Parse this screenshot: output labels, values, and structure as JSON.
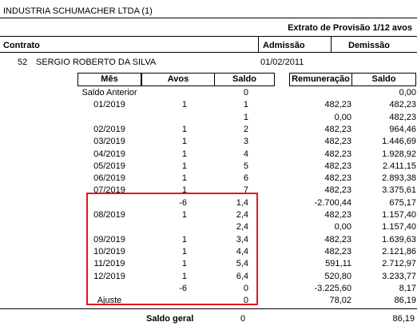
{
  "header": {
    "company": "INDUSTRIA SCHUMACHER LTDA (1)",
    "doc_title": "Extrato de Provisão 1/12 avos",
    "col_contrato": "Contrato",
    "col_admissao": "Admissão",
    "col_demissao": "Demissão"
  },
  "employee": {
    "id": "52",
    "name": "SERGIO ROBERTO DA SILVA",
    "admission": "01/02/2011"
  },
  "table": {
    "headers": {
      "mes": "Mês",
      "avos": "Avos",
      "saldo": "Saldo",
      "remuneracao": "Remuneração",
      "saldo2": "Saldo"
    },
    "rows": [
      {
        "mes": "Saldo Anterior",
        "avos": "",
        "saldo": "0",
        "rem": "",
        "saldo2": "0,00"
      },
      {
        "mes": "01/2019",
        "avos": "1",
        "saldo": "1",
        "rem": "482,23",
        "saldo2": "482,23"
      },
      {
        "mes": "",
        "avos": "",
        "saldo": "1",
        "rem": "0,00",
        "saldo2": "482,23"
      },
      {
        "mes": "02/2019",
        "avos": "1",
        "saldo": "2",
        "rem": "482,23",
        "saldo2": "964,46"
      },
      {
        "mes": "03/2019",
        "avos": "1",
        "saldo": "3",
        "rem": "482,23",
        "saldo2": "1.446,69"
      },
      {
        "mes": "04/2019",
        "avos": "1",
        "saldo": "4",
        "rem": "482,23",
        "saldo2": "1.928,92"
      },
      {
        "mes": "05/2019",
        "avos": "1",
        "saldo": "5",
        "rem": "482,23",
        "saldo2": "2.411,15"
      },
      {
        "mes": "06/2019",
        "avos": "1",
        "saldo": "6",
        "rem": "482,23",
        "saldo2": "2.893,38"
      },
      {
        "mes": "07/2019",
        "avos": "1",
        "saldo": "7",
        "rem": "482,23",
        "saldo2": "3.375,61"
      },
      {
        "mes": "",
        "avos": "-6",
        "saldo": "1,4",
        "rem": "-2.700,44",
        "saldo2": "675,17"
      },
      {
        "mes": "08/2019",
        "avos": "1",
        "saldo": "2,4",
        "rem": "482,23",
        "saldo2": "1.157,40"
      },
      {
        "mes": "",
        "avos": "",
        "saldo": "2,4",
        "rem": "0,00",
        "saldo2": "1.157,40"
      },
      {
        "mes": "09/2019",
        "avos": "1",
        "saldo": "3,4",
        "rem": "482,23",
        "saldo2": "1.639,63"
      },
      {
        "mes": "10/2019",
        "avos": "1",
        "saldo": "4,4",
        "rem": "482,23",
        "saldo2": "2.121,86"
      },
      {
        "mes": "11/2019",
        "avos": "1",
        "saldo": "5,4",
        "rem": "591,11",
        "saldo2": "2.712,97"
      },
      {
        "mes": "12/2019",
        "avos": "1",
        "saldo": "6,4",
        "rem": "520,80",
        "saldo2": "3.233,77"
      },
      {
        "mes": "",
        "avos": "-6",
        "saldo": "0",
        "rem": "-3.225,60",
        "saldo2": "8,17"
      },
      {
        "mes": "Ajuste",
        "avos": "",
        "saldo": "0",
        "rem": "78,02",
        "saldo2": "86,19"
      }
    ]
  },
  "footer": {
    "label": "Saldo geral",
    "saldo": "0",
    "total": "86,19"
  },
  "colors": {
    "highlight": "#e8141c"
  }
}
